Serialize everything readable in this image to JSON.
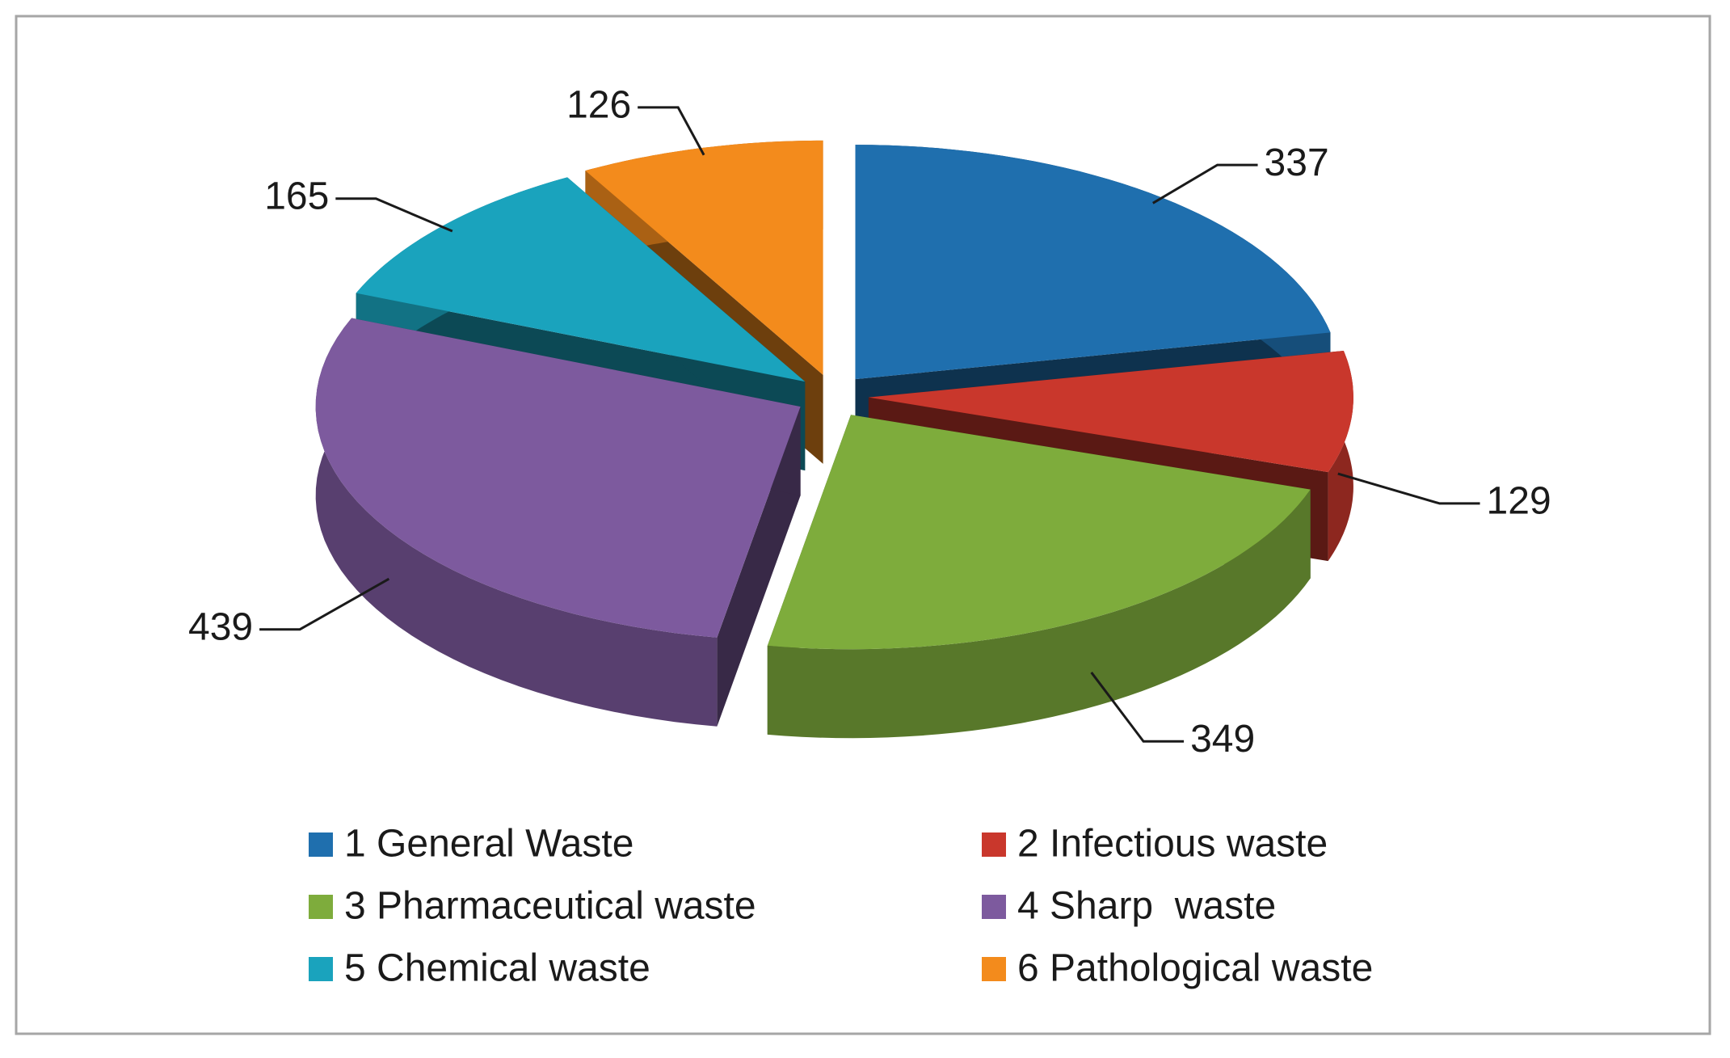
{
  "chart_data": {
    "type": "pie",
    "categories": [
      "1 General Waste",
      "2 Infectious waste",
      "3 Pharmaceutical waste",
      "4 Sharp  waste",
      "5 Chemical waste",
      "6 Pathological waste"
    ],
    "values": [
      337,
      129,
      349,
      439,
      165,
      126
    ],
    "colors": [
      "#1f6fae",
      "#c9372c",
      "#7eac3c",
      "#7d5a9e",
      "#1aa3bd",
      "#f38b1c"
    ],
    "legend": "bottom"
  }
}
